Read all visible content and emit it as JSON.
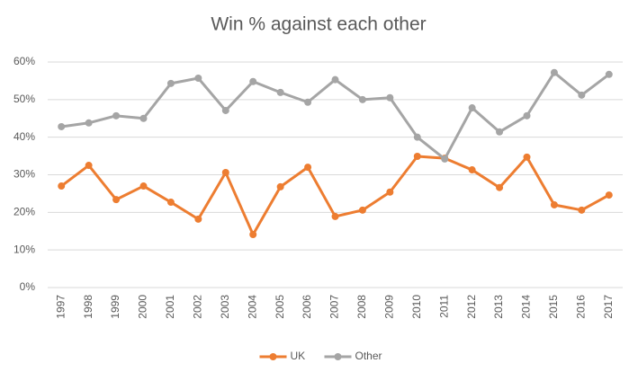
{
  "chart_data": {
    "type": "line",
    "title": "Win % against each other",
    "categories": [
      "1997",
      "1998",
      "1999",
      "2000",
      "2001",
      "2002",
      "2003",
      "2004",
      "2005",
      "2006",
      "2007",
      "2008",
      "2009",
      "2010",
      "2011",
      "2012",
      "2013",
      "2014",
      "2015",
      "2016",
      "2017"
    ],
    "series": [
      {
        "name": "UK",
        "color": "#ed7d31",
        "values": [
          27.0,
          32.5,
          23.4,
          27.0,
          22.7,
          18.2,
          30.6,
          14.1,
          26.8,
          32.0,
          18.9,
          20.6,
          25.4,
          34.9,
          34.4,
          31.3,
          26.6,
          34.7,
          22.0,
          20.6,
          24.6
        ]
      },
      {
        "name": "Other",
        "color": "#a5a5a5",
        "values": [
          42.8,
          43.8,
          45.7,
          45.0,
          54.3,
          55.7,
          47.1,
          54.8,
          51.9,
          49.3,
          55.3,
          50.0,
          50.5,
          40.0,
          34.2,
          47.8,
          41.4,
          45.7,
          57.2,
          51.2,
          56.7
        ]
      }
    ],
    "ylim": [
      0,
      60
    ],
    "yticks": [
      {
        "value": 0,
        "label": "0%"
      },
      {
        "value": 10,
        "label": "10%"
      },
      {
        "value": 20,
        "label": "20%"
      },
      {
        "value": 30,
        "label": "30%"
      },
      {
        "value": 40,
        "label": "40%"
      },
      {
        "value": 50,
        "label": "50%"
      },
      {
        "value": 60,
        "label": "60%"
      }
    ],
    "grid": true,
    "legend": "bottom"
  }
}
